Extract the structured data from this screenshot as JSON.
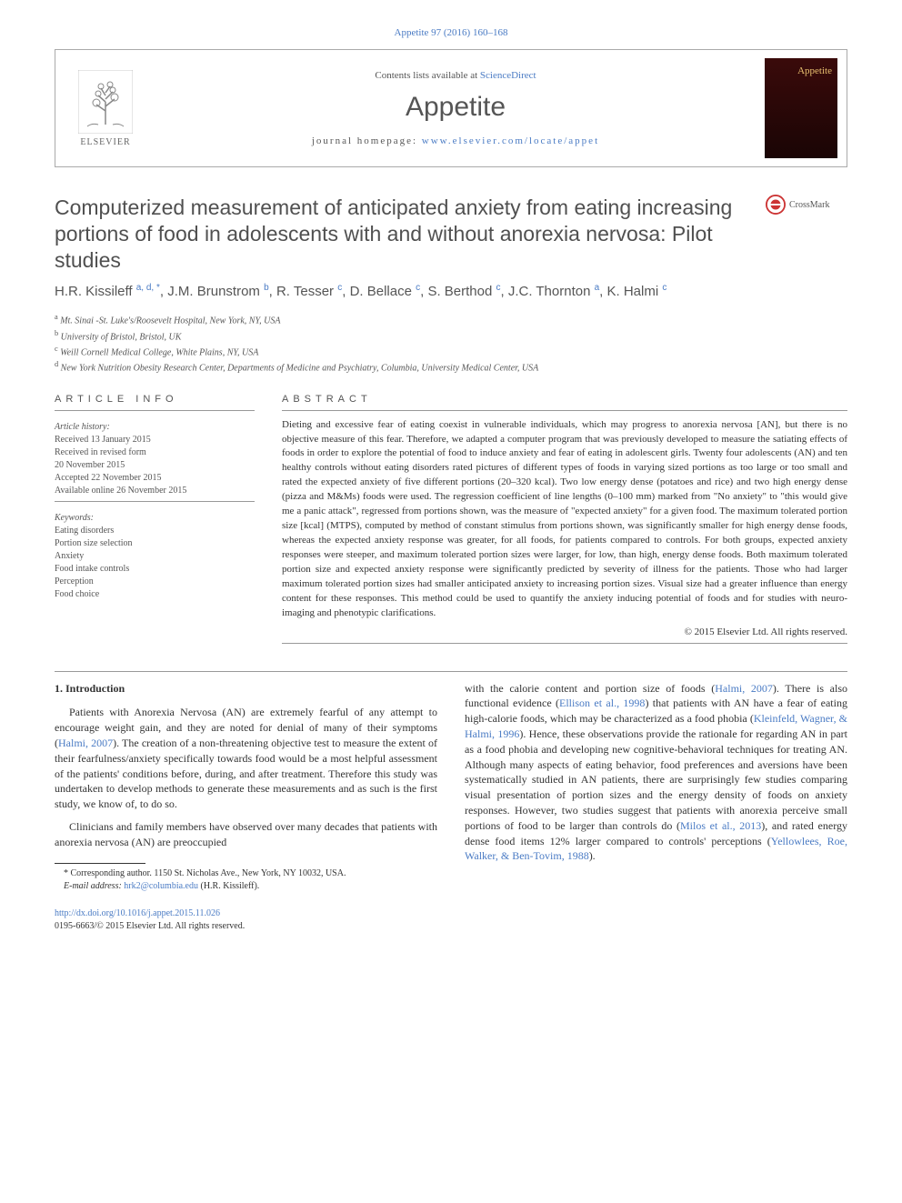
{
  "top_citation": "Appetite 97 (2016) 160–168",
  "header": {
    "contents_prefix": "Contents lists available at ",
    "contents_link": "ScienceDirect",
    "journal_name": "Appetite",
    "homepage_prefix": "journal homepage: ",
    "homepage_link": "www.elsevier.com/locate/appet",
    "publisher_name": "ELSEVIER",
    "cover_title": "Appetite"
  },
  "crossmark_label": "CrossMark",
  "title": "Computerized measurement of anticipated anxiety from eating increasing portions of food in adolescents with and without anorexia nervosa: Pilot studies",
  "authors_html": "H.R. Kissileff <sup>a, d, *</sup>, J.M. Brunstrom <sup>b</sup>, R. Tesser <sup>c</sup>, D. Bellace <sup>c</sup>, S. Berthod <sup>c</sup>, J.C. Thornton <sup>a</sup>, K. Halmi <sup>c</sup>",
  "affiliations": [
    {
      "sup": "a",
      "text": "Mt. Sinai -St. Luke's/Roosevelt Hospital, New York, NY, USA"
    },
    {
      "sup": "b",
      "text": "University of Bristol, Bristol, UK"
    },
    {
      "sup": "c",
      "text": "Weill Cornell Medical College, White Plains, NY, USA"
    },
    {
      "sup": "d",
      "text": "New York Nutrition Obesity Research Center, Departments of Medicine and Psychiatry, Columbia, University Medical Center, USA"
    }
  ],
  "article_info": {
    "heading": "ARTICLE INFO",
    "history_label": "Article history:",
    "history": [
      "Received 13 January 2015",
      "Received in revised form",
      "20 November 2015",
      "Accepted 22 November 2015",
      "Available online 26 November 2015"
    ],
    "keywords_label": "Keywords:",
    "keywords": [
      "Eating disorders",
      "Portion size selection",
      "Anxiety",
      "Food intake controls",
      "Perception",
      "Food choice"
    ]
  },
  "abstract": {
    "heading": "ABSTRACT",
    "body": "Dieting and excessive fear of eating coexist in vulnerable individuals, which may progress to anorexia nervosa [AN], but there is no objective measure of this fear. Therefore, we adapted a computer program that was previously developed to measure the satiating effects of foods in order to explore the potential of food to induce anxiety and fear of eating in adolescent girls. Twenty four adolescents (AN) and ten healthy controls without eating disorders rated pictures of different types of foods in varying sized portions as too large or too small and rated the expected anxiety of five different portions (20–320 kcal). Two low energy dense (potatoes and rice) and two high energy dense (pizza and M&Ms) foods were used. The regression coefficient of line lengths (0–100 mm) marked from \"No anxiety\" to \"this would give me a panic attack\", regressed from portions shown, was the measure of \"expected anxiety\" for a given food. The maximum tolerated portion size [kcal] (MTPS), computed by method of constant stimulus from portions shown, was significantly smaller for high energy dense foods, whereas the expected anxiety response was greater, for all foods, for patients compared to controls. For both groups, expected anxiety responses were steeper, and maximum tolerated portion sizes were larger, for low, than high, energy dense foods. Both maximum tolerated portion size and expected anxiety response were significantly predicted by severity of illness for the patients. Those who had larger maximum tolerated portion sizes had smaller anticipated anxiety to increasing portion sizes. Visual size had a greater influence than energy content for these responses. This method could be used to quantify the anxiety inducing potential of foods and for studies with neuro-imaging and phenotypic clarifications.",
    "copyright": "© 2015 Elsevier Ltd. All rights reserved."
  },
  "section1": {
    "heading": "1. Introduction",
    "p1_pre": "Patients with Anorexia Nervosa (AN) are extremely fearful of any attempt to encourage weight gain, and they are noted for denial of many of their symptoms (",
    "p1_link1": "Halmi, 2007",
    "p1_post": "). The creation of a non-threatening objective test to measure the extent of their fearfulness/anxiety specifically towards food would be a most helpful assessment of the patients' conditions before, during, and after treatment. Therefore this study was undertaken to develop methods to generate these measurements and as such is the first study, we know of, to do so.",
    "p2": "Clinicians and family members have observed over many decades that patients with anorexia nervosa (AN) are preoccupied",
    "p3_a": "with the calorie content and portion size of foods (",
    "p3_link1": "Halmi, 2007",
    "p3_b": "). There is also functional evidence (",
    "p3_link2": "Ellison et al., 1998",
    "p3_c": ") that patients with AN have a fear of eating high-calorie foods, which may be characterized as a food phobia (",
    "p3_link3": "Kleinfeld, Wagner, & Halmi, 1996",
    "p3_d": "). Hence, these observations provide the rationale for regarding AN in part as a food phobia and developing new cognitive-behavioral techniques for treating AN. Although many aspects of eating behavior, food preferences and aversions have been systematically studied in AN patients, there are surprisingly few studies comparing visual presentation of portion sizes and the energy density of foods on anxiety responses. However, two studies suggest that patients with anorexia perceive small portions of food to be larger than controls do (",
    "p3_link4": "Milos et al., 2013",
    "p3_e": "), and rated energy dense food items 12% larger compared to controls' perceptions (",
    "p3_link5": "Yellowlees, Roe, Walker, & Ben-Tovim, 1988",
    "p3_f": ")."
  },
  "footnote": {
    "corr_label": "* Corresponding author. 1150 St. Nicholas Ave., New York, NY 10032, USA.",
    "email_label": "E-mail address: ",
    "email_link": "hrk2@columbia.edu",
    "email_suffix": " (H.R. Kissileff)."
  },
  "doi": {
    "link": "http://dx.doi.org/10.1016/j.appet.2015.11.026",
    "issn": "0195-6663/© 2015 Elsevier Ltd. All rights reserved."
  }
}
